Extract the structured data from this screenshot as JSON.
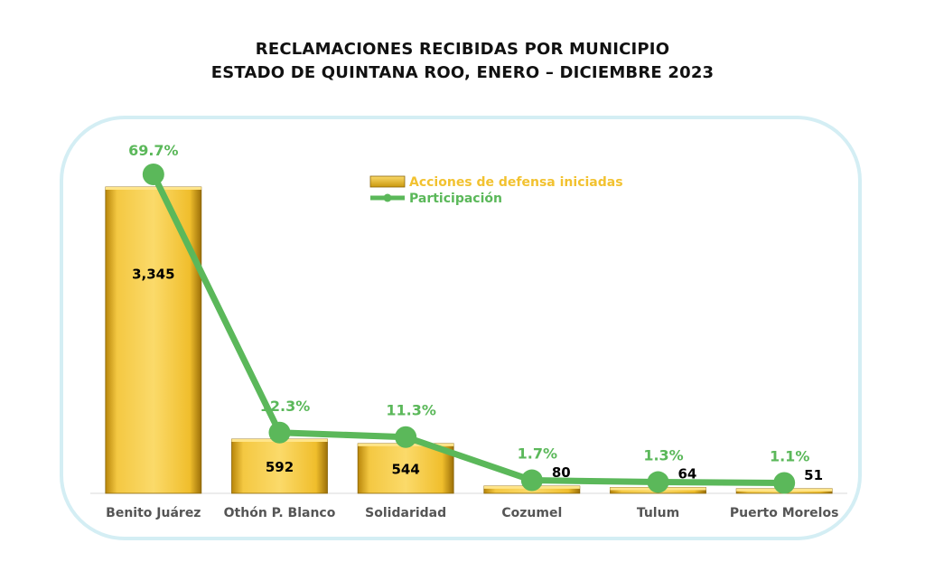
{
  "title_line1": "RECLAMACIONES RECIBIDAS POR MUNICIPIO",
  "title_line2": "ESTADO DE QUINTANA ROO, ENERO – DICIEMBRE 2023",
  "chart_data": {
    "type": "bar",
    "categories": [
      "Benito Juárez",
      "Othón P. Blanco",
      "Solidaridad",
      "Cozumel",
      "Tulum",
      "Puerto Morelos"
    ],
    "series": [
      {
        "name": "Acciones de defensa iniciadas",
        "type": "bar",
        "values": [
          3345,
          592,
          544,
          80,
          64,
          51
        ],
        "labels": [
          "3,345",
          "592",
          "544",
          "80",
          "64",
          "51"
        ],
        "color": "#F2C230"
      },
      {
        "name": "Participación",
        "type": "line",
        "values": [
          69.7,
          12.3,
          11.3,
          1.7,
          1.3,
          1.1
        ],
        "labels": [
          "69.7%",
          "12.3%",
          "11.3%",
          "1.7%",
          "1.3%",
          "1.1%"
        ],
        "color": "#5BB85A"
      }
    ],
    "legend_position": "top-right",
    "grid": false
  }
}
